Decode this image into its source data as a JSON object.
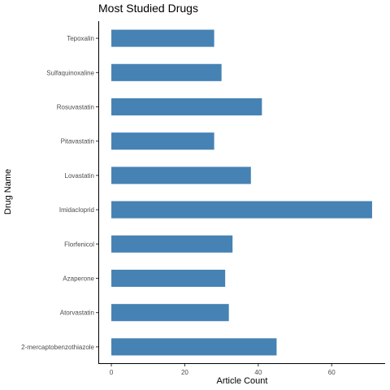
{
  "chart_data": {
    "type": "bar",
    "orientation": "horizontal",
    "title": "Most Studied Drugs",
    "xlabel": "Article Count",
    "ylabel": "Drug Name",
    "categories": [
      "Tepoxalin",
      "Sulfaquinoxaline",
      "Rosuvastatin",
      "Pitavastatin",
      "Lovastatin",
      "Imidacloprid",
      "Florfenicol",
      "Azaperone",
      "Atorvastatin",
      "2-mercaptobenzothiazole"
    ],
    "values": [
      28,
      30,
      41,
      28,
      38,
      71,
      33,
      31,
      32,
      45
    ],
    "xlim": [
      -3.55,
      74.55
    ],
    "xticks": [
      0,
      20,
      40,
      60
    ],
    "grid": false,
    "legend": "none",
    "bar_color": "#4682B4"
  }
}
